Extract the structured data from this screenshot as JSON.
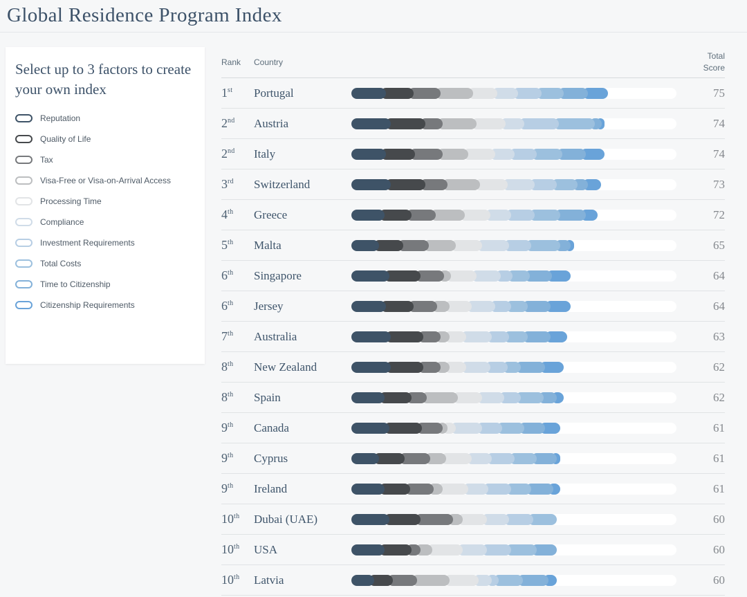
{
  "header": {
    "title": "Global Residence Program Index"
  },
  "sidebar": {
    "heading": "Select up to 3 factors to create your own index",
    "factors": [
      "Reputation",
      "Quality of Life",
      "Tax",
      "Visa-Free or Visa-on-Arrival Access",
      "Processing Time",
      "Compliance",
      "Investment Requirements",
      "Total Costs",
      "Time to Citizenship",
      "Citizenship Requirements"
    ]
  },
  "table": {
    "columns": {
      "rank": "Rank",
      "country": "Country",
      "total_score": "Total Score"
    }
  },
  "chart_data": {
    "type": "bar",
    "orientation": "horizontal-stacked",
    "track_max": 95,
    "track_color": "#ffffff",
    "factors": [
      "Reputation",
      "Quality of Life",
      "Tax",
      "Visa-Free or Visa-on-Arrival Access",
      "Processing Time",
      "Compliance",
      "Investment Requirements",
      "Total Costs",
      "Time to Citizenship",
      "Citizenship Requirements"
    ],
    "factor_colors": [
      "#3e5367",
      "#46494c",
      "#77797c",
      "#bcbec0",
      "#e2e4e6",
      "#d0dce8",
      "#b7cee4",
      "#9cc0de",
      "#83b1d9",
      "#69a3d9"
    ],
    "rows": [
      {
        "rank": "1",
        "suffix": "st",
        "country": "Portugal",
        "score": 75,
        "values": [
          8.5,
          8,
          8,
          9.5,
          7,
          6,
          7,
          6.5,
          7,
          7.5
        ]
      },
      {
        "rank": "2",
        "suffix": "nd",
        "country": "Austria",
        "score": 74,
        "values": [
          10,
          10,
          5,
          10,
          8.5,
          5.5,
          10,
          10.5,
          2,
          2.5
        ]
      },
      {
        "rank": "2",
        "suffix": "nd",
        "country": "Italy",
        "score": 74,
        "values": [
          8.5,
          8.5,
          8,
          7.5,
          8,
          5.5,
          6.5,
          7.5,
          7,
          7
        ]
      },
      {
        "rank": "3",
        "suffix": "rd",
        "country": "Switzerland",
        "score": 73,
        "values": [
          10,
          10,
          6.5,
          9.5,
          8,
          8,
          6.5,
          6,
          3,
          5.5
        ]
      },
      {
        "rank": "4",
        "suffix": "th",
        "country": "Greece",
        "score": 72,
        "values": [
          8,
          8,
          7,
          8.5,
          7.5,
          6,
          7,
          7.5,
          7.5,
          5
        ]
      },
      {
        "rank": "5",
        "suffix": "th",
        "country": "Malta",
        "score": 65,
        "values": [
          6.5,
          7,
          7.5,
          8,
          7.5,
          8,
          6.5,
          8.5,
          3,
          2.5
        ]
      },
      {
        "rank": "6",
        "suffix": "th",
        "country": "Singapore",
        "score": 64,
        "values": [
          9.5,
          9,
          7,
          2,
          7.5,
          7,
          3.5,
          5,
          6.5,
          7
        ]
      },
      {
        "rank": "6",
        "suffix": "th",
        "country": "Jersey",
        "score": 64,
        "values": [
          8.5,
          8,
          7,
          3.5,
          6.5,
          7,
          4.5,
          5,
          6.5,
          7.5
        ]
      },
      {
        "rank": "7",
        "suffix": "th",
        "country": "Australia",
        "score": 63,
        "values": [
          10,
          9.5,
          5,
          2.5,
          5,
          7.5,
          5,
          5.5,
          6.5,
          6.5
        ]
      },
      {
        "rank": "8",
        "suffix": "th",
        "country": "New Zealand",
        "score": 62,
        "values": [
          10,
          9.5,
          5,
          2.5,
          5,
          7,
          5,
          4,
          7,
          7
        ]
      },
      {
        "rank": "8",
        "suffix": "th",
        "country": "Spain",
        "score": 62,
        "values": [
          8,
          8,
          4.5,
          9,
          7,
          6.5,
          5,
          6.5,
          4,
          3.5
        ]
      },
      {
        "rank": "9",
        "suffix": "th",
        "country": "Canada",
        "score": 61,
        "values": [
          9.5,
          9.5,
          6,
          1.5,
          2.5,
          7.5,
          6,
          6.5,
          6,
          6
        ]
      },
      {
        "rank": "9",
        "suffix": "th",
        "country": "Cyprus",
        "score": 61,
        "values": [
          6.5,
          7.5,
          7.5,
          4.5,
          7.5,
          6,
          6.5,
          6.5,
          6,
          2.5
        ]
      },
      {
        "rank": "9",
        "suffix": "th",
        "country": "Ireland",
        "score": 61,
        "values": [
          8,
          7.5,
          7,
          2.5,
          7.5,
          6,
          6.5,
          6,
          6.5,
          3.5
        ]
      },
      {
        "rank": "10",
        "suffix": "th",
        "country": "Dubai (UAE)",
        "score": 60,
        "values": [
          9.5,
          9,
          9.5,
          3,
          7,
          6.5,
          7,
          8.5,
          0,
          0
        ]
      },
      {
        "rank": "10",
        "suffix": "th",
        "country": "USA",
        "score": 60,
        "values": [
          8,
          8,
          2.5,
          3.5,
          9,
          7,
          7,
          7.5,
          7.5,
          0
        ]
      },
      {
        "rank": "10",
        "suffix": "th",
        "country": "Latvia",
        "score": 60,
        "values": [
          5,
          5.5,
          7,
          9.5,
          8.5,
          4,
          2,
          7,
          7.5,
          4
        ]
      }
    ]
  }
}
